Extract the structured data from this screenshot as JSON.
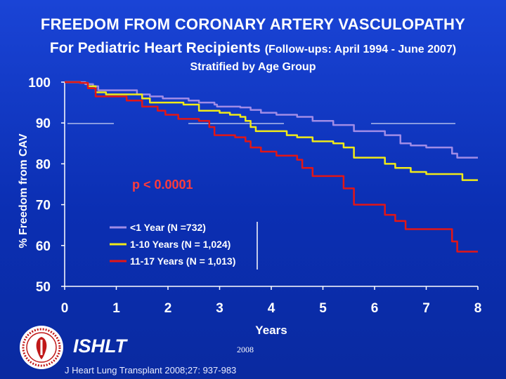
{
  "header": {
    "title": "FREEDOM FROM CORONARY ARTERY VASCULOPATHY",
    "subtitle_main": "For Pediatric Heart Recipients",
    "subtitle_followup": "(Follow-ups: April 1994 - June 2007)",
    "subtitle_strata": "Stratified by Age Group"
  },
  "chart_data": {
    "type": "line",
    "xlabel": "Years",
    "ylabel": "% Freedom from CAV",
    "xlim": [
      0,
      8
    ],
    "ylim": [
      50,
      100
    ],
    "xticks": [
      "0",
      "1",
      "2",
      "3",
      "4",
      "5",
      "6",
      "7",
      "8"
    ],
    "yticks": [
      "50",
      "60",
      "70",
      "80",
      "90",
      "100"
    ],
    "grid": false,
    "legend_position": "lower-middle",
    "annotation": "p < 0.0001",
    "series": [
      {
        "name": "<1 Year  (N =732)",
        "color": "#a08ce6",
        "points": [
          [
            0,
            100
          ],
          [
            0.3,
            100
          ],
          [
            0.4,
            99.5
          ],
          [
            0.55,
            99
          ],
          [
            0.65,
            98
          ],
          [
            1.2,
            98
          ],
          [
            1.4,
            97
          ],
          [
            1.65,
            96.5
          ],
          [
            1.9,
            96
          ],
          [
            2.4,
            95.5
          ],
          [
            2.6,
            95
          ],
          [
            2.9,
            94.5
          ],
          [
            2.95,
            94
          ],
          [
            3.4,
            93.8
          ],
          [
            3.6,
            93.2
          ],
          [
            3.8,
            92.5
          ],
          [
            4.1,
            92
          ],
          [
            4.5,
            91.5
          ],
          [
            4.8,
            90.5
          ],
          [
            5.2,
            89.5
          ],
          [
            5.6,
            88
          ],
          [
            6.0,
            88
          ],
          [
            6.2,
            87
          ],
          [
            6.5,
            85
          ],
          [
            6.7,
            84.5
          ],
          [
            7.0,
            84
          ],
          [
            7.3,
            84
          ],
          [
            7.5,
            82.5
          ],
          [
            7.6,
            81.5
          ],
          [
            8.0,
            81.5
          ]
        ]
      },
      {
        "name": "1-10 Years  (N = 1,024)",
        "color": "#f0ea18",
        "points": [
          [
            0,
            100
          ],
          [
            0.3,
            99.8
          ],
          [
            0.45,
            99
          ],
          [
            0.6,
            97.5
          ],
          [
            0.8,
            97
          ],
          [
            1.3,
            97
          ],
          [
            1.5,
            96
          ],
          [
            1.65,
            95
          ],
          [
            2.0,
            95
          ],
          [
            2.3,
            94.5
          ],
          [
            2.6,
            93
          ],
          [
            3.0,
            92.5
          ],
          [
            3.2,
            92
          ],
          [
            3.4,
            91.5
          ],
          [
            3.5,
            90.5
          ],
          [
            3.6,
            89
          ],
          [
            3.7,
            88
          ],
          [
            4.1,
            88
          ],
          [
            4.3,
            87
          ],
          [
            4.5,
            86.5
          ],
          [
            4.8,
            85.5
          ],
          [
            5.2,
            85
          ],
          [
            5.4,
            84
          ],
          [
            5.6,
            81.5
          ],
          [
            6.0,
            81.5
          ],
          [
            6.2,
            80
          ],
          [
            6.4,
            79
          ],
          [
            6.7,
            78
          ],
          [
            7.0,
            77.5
          ],
          [
            7.6,
            77.5
          ],
          [
            7.7,
            76
          ],
          [
            8.0,
            76
          ]
        ]
      },
      {
        "name": "11-17 Years  (N = 1,013)",
        "color": "#e21616",
        "points": [
          [
            0,
            100
          ],
          [
            0.3,
            99.8
          ],
          [
            0.45,
            98.5
          ],
          [
            0.6,
            96.5
          ],
          [
            1.0,
            96.5
          ],
          [
            1.2,
            95.5
          ],
          [
            1.5,
            94
          ],
          [
            1.8,
            93
          ],
          [
            1.95,
            92
          ],
          [
            2.2,
            91
          ],
          [
            2.6,
            90.5
          ],
          [
            2.8,
            89
          ],
          [
            2.9,
            87
          ],
          [
            3.3,
            86.5
          ],
          [
            3.5,
            85.5
          ],
          [
            3.6,
            84
          ],
          [
            3.8,
            83
          ],
          [
            4.1,
            82
          ],
          [
            4.5,
            81
          ],
          [
            4.6,
            79
          ],
          [
            4.8,
            77
          ],
          [
            5.2,
            77
          ],
          [
            5.4,
            74
          ],
          [
            5.6,
            70
          ],
          [
            6.0,
            70
          ],
          [
            6.2,
            67.5
          ],
          [
            6.4,
            66
          ],
          [
            6.6,
            64
          ],
          [
            7.0,
            64
          ],
          [
            7.3,
            64
          ],
          [
            7.5,
            61
          ],
          [
            7.6,
            58.5
          ],
          [
            8.0,
            58.5
          ]
        ]
      }
    ]
  },
  "footer": {
    "brand": "ISHLT",
    "year": "2008",
    "citation": "J Heart Lung Transplant 2008;27: 937-983"
  },
  "colors": {
    "background": "#0b2fb3",
    "axis": "#ffffff",
    "annotation": "#ff3b3b"
  }
}
